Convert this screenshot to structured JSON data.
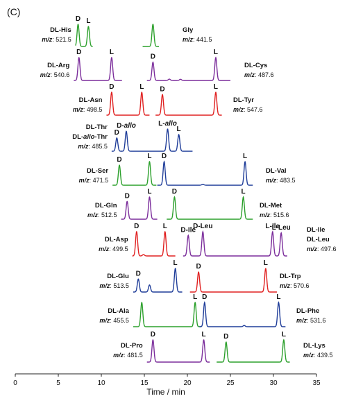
{
  "chart_data": {
    "type": "line",
    "panel_label": "(C)",
    "xlabel": "Time / min",
    "xlim": [
      0,
      35
    ],
    "xticks": [
      0,
      5,
      10,
      15,
      20,
      25,
      30,
      35
    ],
    "traces": [
      {
        "analyte": "DL-His",
        "mz": "521.5",
        "color": "#2ca02c",
        "range": [
          7.0,
          9.0
        ],
        "peaks": [
          {
            "label": "D",
            "t": 7.3,
            "h": 1.0
          },
          {
            "label": "L",
            "t": 8.5,
            "h": 0.9
          }
        ]
      },
      {
        "analyte": "Gly",
        "mz": "441.5",
        "color": "#2ca02c",
        "range": [
          14.8,
          16.7
        ],
        "peaks": [
          {
            "label": "",
            "t": 16.0,
            "h": 1.0
          }
        ]
      },
      {
        "analyte": "DL-Arg",
        "mz": "540.6",
        "color": "#7b2d9b",
        "range": [
          6.8,
          12.4
        ],
        "peaks": [
          {
            "label": "D",
            "t": 7.4,
            "h": 1.0
          },
          {
            "label": "L",
            "t": 11.2,
            "h": 1.0
          }
        ]
      },
      {
        "analyte": "DL-Cys",
        "mz": "487.6",
        "color": "#7b2d9b",
        "range": [
          15.3,
          25.0
        ],
        "peaks": [
          {
            "label": "D",
            "t": 16.0,
            "h": 0.8
          },
          {
            "label": "",
            "t": 17.9,
            "h": 0.06
          },
          {
            "label": "",
            "t": 19.2,
            "h": 0.05
          },
          {
            "label": "L",
            "t": 23.3,
            "h": 1.0
          }
        ]
      },
      {
        "analyte": "DL-Asn",
        "mz": "498.5",
        "color": "#e02020",
        "range": [
          10.6,
          15.6
        ],
        "peaks": [
          {
            "label": "D",
            "t": 11.2,
            "h": 1.0
          },
          {
            "label": "L",
            "t": 14.7,
            "h": 1.0
          }
        ]
      },
      {
        "analyte": "DL-Tyr",
        "mz": "547.6",
        "color": "#e02020",
        "range": [
          16.3,
          24.0
        ],
        "peaks": [
          {
            "label": "D",
            "t": 17.1,
            "h": 0.9
          },
          {
            "label": "L",
            "t": 23.3,
            "h": 1.0
          }
        ]
      },
      {
        "analyte": "DL-Thr / DL-allo-Thr",
        "mz": "485.5",
        "color": "#1f3d99",
        "range": [
          11.2,
          20.6
        ],
        "peaks": [
          {
            "label": "D",
            "t": 11.8,
            "h": 0.6
          },
          {
            "label": "D-allo",
            "t": 12.9,
            "h": 0.9
          },
          {
            "label": "L-allo",
            "t": 17.7,
            "h": 1.0
          },
          {
            "label": "L",
            "t": 19.0,
            "h": 0.75
          }
        ]
      },
      {
        "analyte": "DL-Ser",
        "mz": "471.5",
        "color": "#2ca02c",
        "range": [
          11.3,
          16.4
        ],
        "peaks": [
          {
            "label": "D",
            "t": 12.1,
            "h": 0.85
          },
          {
            "label": "L",
            "t": 15.6,
            "h": 1.0
          }
        ]
      },
      {
        "analyte": "DL-Val",
        "mz": "483.5",
        "color": "#1f3d99",
        "range": [
          16.5,
          27.6
        ],
        "peaks": [
          {
            "label": "D",
            "t": 17.3,
            "h": 1.0
          },
          {
            "label": "",
            "t": 21.8,
            "h": 0.04
          },
          {
            "label": "L",
            "t": 26.7,
            "h": 1.0
          }
        ]
      },
      {
        "analyte": "DL-Gln",
        "mz": "512.5",
        "color": "#7b2d9b",
        "range": [
          12.3,
          16.5
        ],
        "peaks": [
          {
            "label": "D",
            "t": 13.0,
            "h": 0.8
          },
          {
            "label": "L",
            "t": 15.6,
            "h": 1.0
          }
        ]
      },
      {
        "analyte": "DL-Met",
        "mz": "515.6",
        "color": "#2ca02c",
        "range": [
          17.6,
          27.6
        ],
        "peaks": [
          {
            "label": "D",
            "t": 18.5,
            "h": 1.0
          },
          {
            "label": "L",
            "t": 26.5,
            "h": 1.0
          }
        ]
      },
      {
        "analyte": "DL-Asp",
        "mz": "499.5",
        "color": "#e02020",
        "range": [
          13.6,
          18.6
        ],
        "peaks": [
          {
            "label": "D",
            "t": 14.1,
            "h": 1.0
          },
          {
            "label": "",
            "t": 14.9,
            "h": 0.06
          },
          {
            "label": "L",
            "t": 17.4,
            "h": 1.0
          }
        ]
      },
      {
        "analyte": "DL-Ile / DL-Leu",
        "mz": "497.6",
        "color": "#7b2d9b",
        "range": [
          19.5,
          31.6
        ],
        "peaks": [
          {
            "label": "D-Ile",
            "t": 20.1,
            "h": 0.85
          },
          {
            "label": "D-Leu",
            "t": 21.8,
            "h": 1.0
          },
          {
            "label": "L-Ile",
            "t": 29.9,
            "h": 1.0
          },
          {
            "label": "L-Leu",
            "t": 30.9,
            "h": 0.95
          }
        ]
      },
      {
        "analyte": "DL-Glu",
        "mz": "513.5",
        "color": "#1f3d99",
        "range": [
          13.7,
          19.4
        ],
        "peaks": [
          {
            "label": "D",
            "t": 14.3,
            "h": 0.55
          },
          {
            "label": "",
            "t": 15.6,
            "h": 0.3
          },
          {
            "label": "L",
            "t": 18.6,
            "h": 1.0
          }
        ]
      },
      {
        "analyte": "DL-Trp",
        "mz": "570.6",
        "color": "#e02020",
        "range": [
          20.3,
          30.4
        ],
        "peaks": [
          {
            "label": "D",
            "t": 21.3,
            "h": 0.85
          },
          {
            "label": "L",
            "t": 29.1,
            "h": 1.0
          }
        ]
      },
      {
        "analyte": "DL-Ala",
        "mz": "455.5",
        "color": "#2ca02c",
        "range": [
          13.7,
          21.6
        ],
        "peaks": [
          {
            "label": "",
            "t": 14.7,
            "h": 1.0
          },
          {
            "label": "L",
            "t": 20.9,
            "h": 1.0
          }
        ]
      },
      {
        "analyte": "DL-Phe",
        "mz": "531.6",
        "color": "#1f3d99",
        "range": [
          21.4,
          31.4
        ],
        "peaks": [
          {
            "label": "D",
            "t": 22.0,
            "h": 1.0
          },
          {
            "label": "",
            "t": 26.6,
            "h": 0.05
          },
          {
            "label": "L",
            "t": 30.6,
            "h": 1.0
          }
        ]
      },
      {
        "analyte": "DL-Pro",
        "mz": "481.5",
        "color": "#7b2d9b",
        "range": [
          15.3,
          22.6
        ],
        "peaks": [
          {
            "label": "D",
            "t": 16.0,
            "h": 1.0
          },
          {
            "label": "L",
            "t": 21.9,
            "h": 1.0
          }
        ]
      },
      {
        "analyte": "DL-Lys",
        "mz": "439.5",
        "color": "#2ca02c",
        "range": [
          23.4,
          31.9
        ],
        "peaks": [
          {
            "label": "D",
            "t": 24.5,
            "h": 0.9
          },
          {
            "label": "L",
            "t": 31.2,
            "h": 1.0
          }
        ]
      }
    ]
  }
}
